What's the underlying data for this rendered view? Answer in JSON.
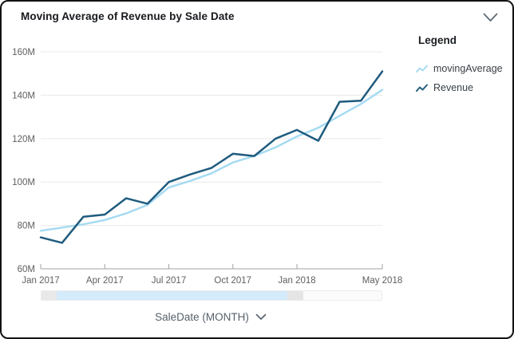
{
  "header": {
    "title": "Moving Average of Revenue by Sale Date",
    "collapse_icon": "chevron-down"
  },
  "legend": {
    "title": "Legend",
    "position": "right",
    "items": [
      {
        "label": "movingAverage",
        "color": "#a6dbf2"
      },
      {
        "label": "Revenue",
        "color": "#25607f"
      }
    ]
  },
  "controls": {
    "x_field_label": "SaleDate (MONTH)",
    "x_field_icon": "chevron-down"
  },
  "scrollbar": {
    "selection_color": "#d4ebfb",
    "handle_color": "#e9e9e9",
    "track_color": "#fbfbfb"
  },
  "chart_data": {
    "type": "line",
    "title": "Moving Average of Revenue by Sale Date",
    "xlabel": "SaleDate (MONTH)",
    "ylabel": "",
    "unit": "M",
    "grid": true,
    "legend_position": "right",
    "x_point_count": 17,
    "x_range": [
      "Jan 2017",
      "May 2018"
    ],
    "x_tick_labels": [
      "Jan 2017",
      "Apr 2017",
      "Jul 2017",
      "Oct 2017",
      "Jan 2018",
      "May 2018"
    ],
    "x_tick_positions": [
      0,
      3,
      6,
      9,
      12,
      16
    ],
    "ylim": [
      60,
      160
    ],
    "y_ticks": [
      60,
      80,
      100,
      120,
      140,
      160
    ],
    "y_tick_labels": [
      "60M",
      "80M",
      "100M",
      "120M",
      "140M",
      "160M"
    ],
    "series": [
      {
        "name": "movingAverage",
        "color": "#a6dbf2",
        "values": [
          77.5,
          79,
          80.5,
          82.5,
          85.5,
          89.5,
          97.5,
          100.5,
          104,
          109,
          112,
          116,
          121,
          125,
          130.5,
          136,
          142.5
        ]
      },
      {
        "name": "Revenue",
        "color": "#1f5b7e",
        "values": [
          74.5,
          72,
          84,
          85,
          92.5,
          90,
          100,
          103.5,
          106.5,
          113,
          112,
          120,
          124,
          119,
          137,
          137.5,
          151
        ]
      }
    ]
  }
}
